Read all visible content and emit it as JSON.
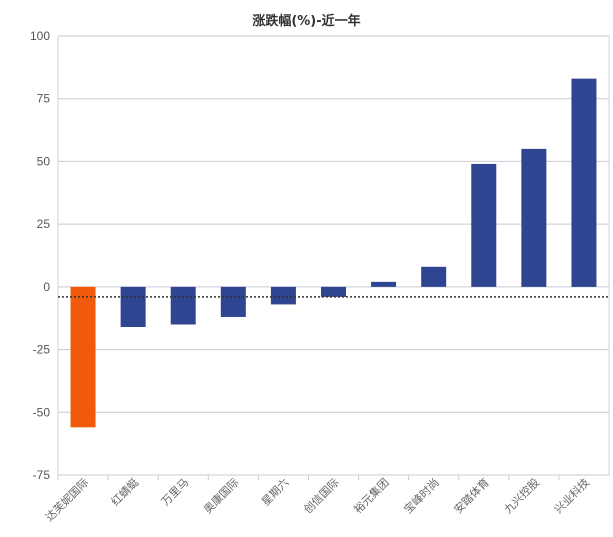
{
  "chart_data": {
    "type": "bar",
    "title": "涨跌幅(%)-近一年",
    "xlabel": "",
    "ylabel": "",
    "ylim": [
      -75,
      100
    ],
    "yticks": [
      100,
      75,
      50,
      25,
      0,
      -25,
      -50,
      -75
    ],
    "grid": true,
    "categories": [
      "达芙妮国际",
      "红蜻蜓",
      "万里马",
      "奥康国际",
      "星期六",
      "创信国际",
      "裕元集团",
      "宝峰时尚",
      "安踏体育",
      "九兴控股",
      "兴业科技"
    ],
    "values": [
      -56,
      -16,
      -15,
      -12,
      -7,
      -4,
      2,
      8,
      49,
      55,
      83
    ],
    "reference_line": -4,
    "colors": {
      "highlight": "#f05a0a",
      "bar": "#2f4591",
      "grid": "#c9c9d6",
      "reference": "#333333"
    },
    "highlight_index": 0
  }
}
